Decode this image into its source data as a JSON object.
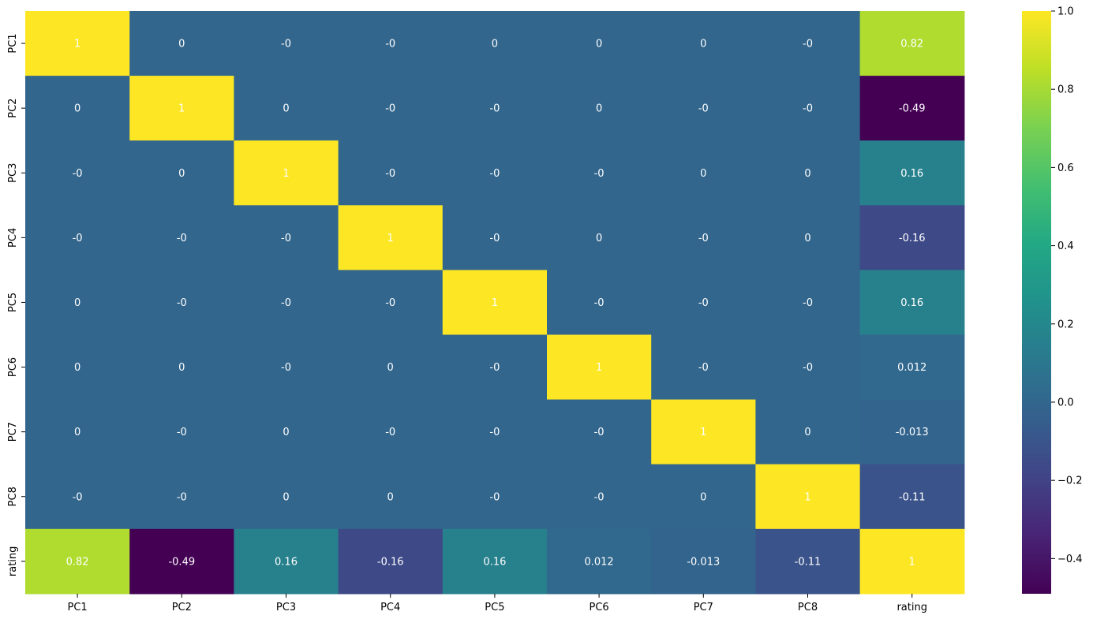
{
  "chart_data": {
    "type": "heatmap",
    "x_categories": [
      "PC1",
      "PC2",
      "PC3",
      "PC4",
      "PC5",
      "PC6",
      "PC7",
      "PC8",
      "rating"
    ],
    "y_categories": [
      "PC1",
      "PC2",
      "PC3",
      "PC4",
      "PC5",
      "PC6",
      "PC7",
      "PC8",
      "rating"
    ],
    "annotations": [
      [
        "1",
        "0",
        "-0",
        "-0",
        "0",
        "0",
        "0",
        "-0",
        "0.82"
      ],
      [
        "0",
        "1",
        "0",
        "-0",
        "-0",
        "0",
        "-0",
        "-0",
        "-0.49"
      ],
      [
        "-0",
        "0",
        "1",
        "-0",
        "-0",
        "-0",
        "0",
        "0",
        "0.16"
      ],
      [
        "-0",
        "-0",
        "-0",
        "1",
        "-0",
        "0",
        "-0",
        "0",
        "-0.16"
      ],
      [
        "0",
        "-0",
        "-0",
        "-0",
        "1",
        "-0",
        "-0",
        "-0",
        "0.16"
      ],
      [
        "0",
        "0",
        "-0",
        "0",
        "-0",
        "1",
        "-0",
        "-0",
        "0.012"
      ],
      [
        "0",
        "-0",
        "0",
        "-0",
        "-0",
        "-0",
        "1",
        "0",
        "-0.013"
      ],
      [
        "-0",
        "-0",
        "0",
        "0",
        "-0",
        "-0",
        "0",
        "1",
        "-0.11"
      ],
      [
        "0.82",
        "-0.49",
        "0.16",
        "-0.16",
        "0.16",
        "0.012",
        "-0.013",
        "-0.11",
        "1"
      ]
    ],
    "colormap": "viridis",
    "vmin": -0.49,
    "vmax": 1.0,
    "colorbar_ticks": [
      1.0,
      0.8,
      0.6,
      0.4,
      0.2,
      0.0,
      -0.2,
      -0.4
    ],
    "colorbar_tick_labels": [
      "1.0",
      "0.8",
      "0.6",
      "0.4",
      "0.2",
      "0.0",
      "−0.2",
      "−0.4"
    ],
    "annotation_color": "#ffffff",
    "legend": "colorbar-right",
    "grid": false
  }
}
